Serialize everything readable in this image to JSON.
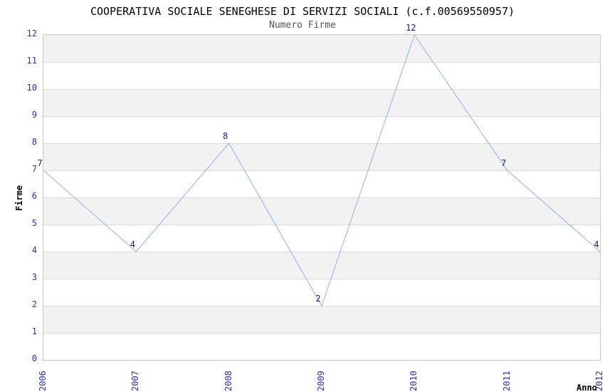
{
  "chart_data": {
    "type": "line",
    "title": "COOPERATIVA SOCIALE SENEGHESE DI SERVIZI SOCIALI (c.f.00569550957)",
    "subtitle": "Numero Firme",
    "xlabel": "Anno",
    "ylabel": "Firme",
    "categories": [
      "2006",
      "2007",
      "2008",
      "2009",
      "2010",
      "2011",
      "2012"
    ],
    "series": [
      {
        "name": "Numero Firme",
        "values": [
          7,
          4,
          8,
          2,
          12,
          7,
          4
        ]
      }
    ],
    "point_labels": [
      "7",
      "4",
      "8",
      "2",
      "12",
      "7",
      "4"
    ],
    "ylim": [
      0,
      12
    ],
    "yticks": [
      0,
      1,
      2,
      3,
      4,
      5,
      6,
      7,
      8,
      9,
      10,
      11,
      12
    ],
    "grid": "horizontal gridlines with alternating shaded bands",
    "legend": "none",
    "colors": {
      "line": "#8ab4e8",
      "tick_label": "#2d2dc8",
      "point_label": "#1a1a7a",
      "band": "#f2f2f2",
      "gridline": "#d9d9d9",
      "plot_border": "#c9c9c9",
      "title": "#000000",
      "subtitle": "#555555",
      "axis_label": "#000000",
      "background": "#ffffff"
    }
  }
}
